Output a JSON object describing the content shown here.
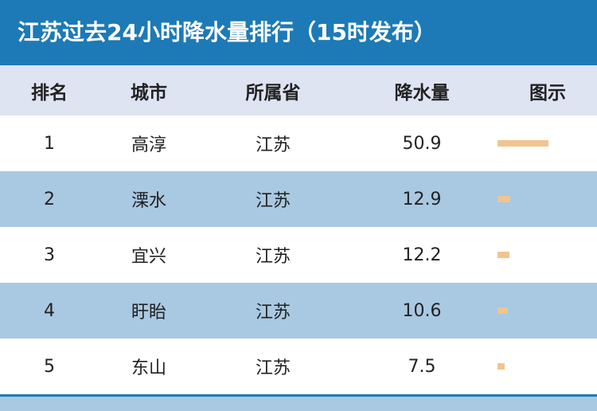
{
  "header": {
    "title": "江苏过去24小时降水量排行（15时发布）"
  },
  "table": {
    "columns": [
      "排名",
      "城市",
      "所属省",
      "降水量",
      "图示"
    ],
    "rows": [
      [
        1,
        "高淳",
        "江苏",
        50.9
      ],
      [
        2,
        "溧水",
        "江苏",
        12.9
      ],
      [
        3,
        "宜兴",
        "江苏",
        12.2
      ],
      [
        4,
        "盱眙",
        "江苏",
        10.6
      ],
      [
        5,
        "东山",
        "江苏",
        7.5
      ]
    ]
  }
}
